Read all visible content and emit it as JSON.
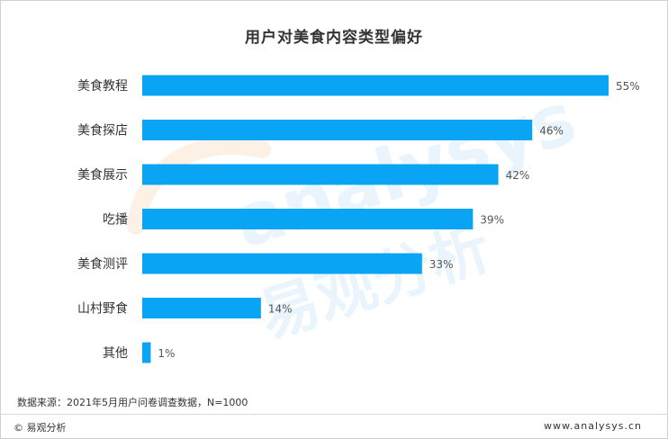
{
  "chart_data": {
    "type": "bar",
    "orientation": "horizontal",
    "title": "用户对美食内容类型偏好",
    "categories": [
      "美食教程",
      "美食探店",
      "美食展示",
      "吃播",
      "美食测评",
      "山村野食",
      "其他"
    ],
    "values": [
      55,
      46,
      42,
      39,
      33,
      14,
      1
    ],
    "value_labels": [
      "55%",
      "46%",
      "42%",
      "39%",
      "33%",
      "14%",
      "1%"
    ],
    "xlabel": "",
    "ylabel": "",
    "xlim": [
      0,
      55
    ],
    "grid": false,
    "bar_color": "#0aa4f5"
  },
  "source_text": "数据来源：2021年5月用户问卷调查数据，N=1000",
  "copyright_text": "© 易观分析",
  "site_text": "www.analysys.cn",
  "watermark": {
    "brand_en": "analysys",
    "brand_cn": "易观分析",
    "color": "#e8f3fb"
  }
}
